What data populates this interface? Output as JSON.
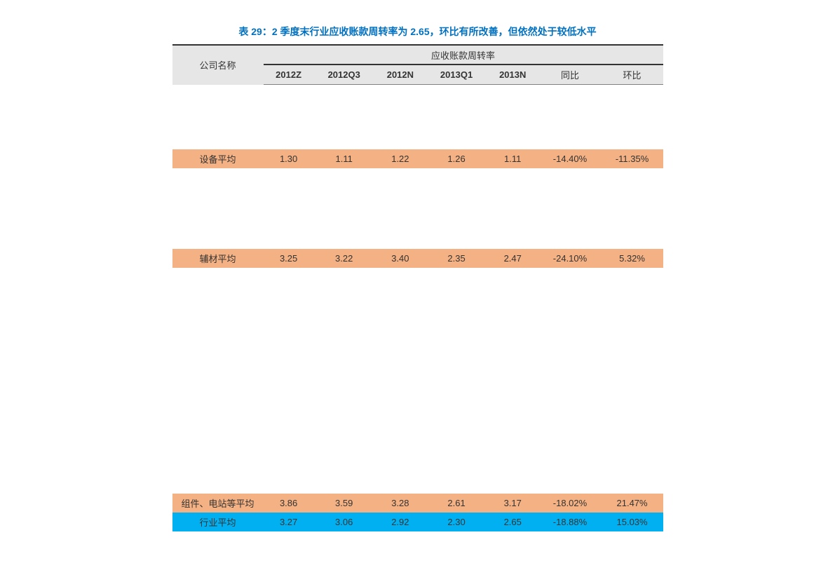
{
  "title": "表 29：2 季度末行业应收账款周转率为 2.65，环比有所改善，但依然处于较低水平",
  "columns": {
    "company_label": "公司名称",
    "group_header": "应收账款周转率",
    "headers": [
      "2012Z",
      "2012Q3",
      "2012N",
      "2013Q1",
      "2013N",
      "同比",
      "环比"
    ]
  },
  "styling": {
    "title_color": "#0070c0",
    "header_bg": "#e7e6e6",
    "orange_bg": "#f4b183",
    "blue_bg": "#00b0f0",
    "border_top_color": "#333333",
    "border_color": "#808080",
    "font_size_title": 14,
    "font_size_body": 13
  },
  "rows": [
    {
      "highlight": "none",
      "company": "",
      "vals": [
        "",
        "",
        "",
        "",
        "",
        "",
        ""
      ]
    },
    {
      "highlight": "none",
      "company": "",
      "vals": [
        "",
        "",
        "",
        "",
        "",
        "",
        ""
      ]
    },
    {
      "highlight": "none",
      "company": "",
      "vals": [
        "",
        "",
        "",
        "",
        "",
        "",
        ""
      ]
    },
    {
      "highlight": "none",
      "company": "",
      "vals": [
        "",
        "",
        "",
        "",
        "",
        "",
        ""
      ]
    },
    {
      "highlight": "orange",
      "company": "设备平均",
      "vals": [
        "1.30",
        "1.11",
        "1.22",
        "1.26",
        "1.11",
        "-14.40%",
        "-11.35%"
      ]
    },
    {
      "highlight": "none",
      "company": "",
      "vals": [
        "",
        "",
        "",
        "",
        "",
        "",
        ""
      ]
    },
    {
      "highlight": "none",
      "company": "",
      "vals": [
        "",
        "",
        "",
        "",
        "",
        "",
        ""
      ]
    },
    {
      "highlight": "none",
      "company": "",
      "vals": [
        "",
        "",
        "",
        "",
        "",
        "",
        ""
      ]
    },
    {
      "highlight": "none",
      "company": "",
      "vals": [
        "",
        "",
        "",
        "",
        "",
        "",
        ""
      ]
    },
    {
      "highlight": "none",
      "company": "",
      "vals": [
        "",
        "",
        "",
        "",
        "",
        "",
        ""
      ]
    },
    {
      "highlight": "orange",
      "company": "辅材平均",
      "vals": [
        "3.25",
        "3.22",
        "3.40",
        "2.35",
        "2.47",
        "-24.10%",
        "5.32%"
      ]
    },
    {
      "highlight": "none",
      "company": "",
      "vals": [
        "",
        "",
        "",
        "",
        "",
        "",
        ""
      ]
    },
    {
      "highlight": "none",
      "company": "",
      "vals": [
        "",
        "",
        "",
        "",
        "",
        "",
        ""
      ]
    },
    {
      "highlight": "none",
      "company": "",
      "vals": [
        "",
        "",
        "",
        "",
        "",
        "",
        ""
      ]
    },
    {
      "highlight": "none",
      "company": "",
      "vals": [
        "",
        "",
        "",
        "",
        "",
        "",
        ""
      ]
    },
    {
      "highlight": "none",
      "company": "",
      "vals": [
        "",
        "",
        "",
        "",
        "",
        "",
        ""
      ]
    },
    {
      "highlight": "none",
      "company": "",
      "vals": [
        "",
        "",
        "",
        "",
        "",
        "",
        ""
      ]
    },
    {
      "highlight": "none",
      "company": "",
      "vals": [
        "",
        "",
        "",
        "",
        "",
        "",
        ""
      ]
    },
    {
      "highlight": "none",
      "company": "",
      "vals": [
        "",
        "",
        "",
        "",
        "",
        "",
        ""
      ]
    },
    {
      "highlight": "none",
      "company": "",
      "vals": [
        "",
        "",
        "",
        "",
        "",
        "",
        ""
      ]
    },
    {
      "highlight": "none",
      "company": "",
      "vals": [
        "",
        "",
        "",
        "",
        "",
        "",
        ""
      ]
    },
    {
      "highlight": "none",
      "company": "",
      "vals": [
        "",
        "",
        "",
        "",
        "",
        "",
        ""
      ]
    },
    {
      "highlight": "none",
      "company": "",
      "vals": [
        "",
        "",
        "",
        "",
        "",
        "",
        ""
      ]
    },
    {
      "highlight": "none",
      "company": "",
      "vals": [
        "",
        "",
        "",
        "",
        "",
        "",
        ""
      ]
    },
    {
      "highlight": "none",
      "company": "",
      "vals": [
        "",
        "",
        "",
        "",
        "",
        "",
        ""
      ]
    },
    {
      "highlight": "orange",
      "company": "组件、电站等平均",
      "vals": [
        "3.86",
        "3.59",
        "3.28",
        "2.61",
        "3.17",
        "-18.02%",
        "21.47%"
      ]
    },
    {
      "highlight": "blue",
      "company": "行业平均",
      "vals": [
        "3.27",
        "3.06",
        "2.92",
        "2.30",
        "2.65",
        "-18.88%",
        "15.03%"
      ]
    }
  ]
}
